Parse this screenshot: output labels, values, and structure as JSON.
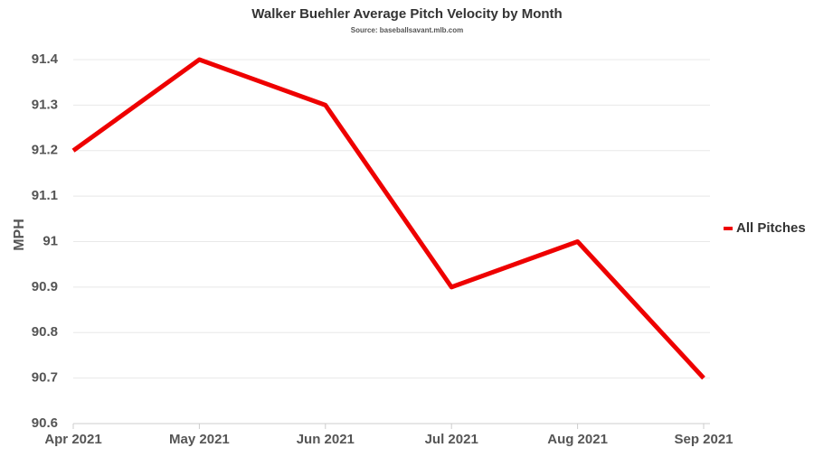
{
  "chart_data": {
    "type": "line",
    "title": "Walker Buehler Average Pitch Velocity by Month",
    "subtitle": "Source: baseballsavant.mlb.com",
    "y_label": "MPH",
    "categories": [
      "Apr 2021",
      "May 2021",
      "Jun 2021",
      "Jul 2021",
      "Aug 2021",
      "Sep 2021"
    ],
    "series": [
      {
        "name": "All Pitches",
        "color": "#ee0000",
        "values": [
          91.2,
          91.4,
          91.3,
          90.9,
          91,
          90.7
        ]
      }
    ],
    "ylim": [
      90.6,
      91.4
    ],
    "yticks": [
      90.6,
      90.7,
      90.8,
      90.9,
      91,
      91.1,
      91.2,
      91.3,
      91.4
    ],
    "grid": true,
    "legend": "right"
  }
}
